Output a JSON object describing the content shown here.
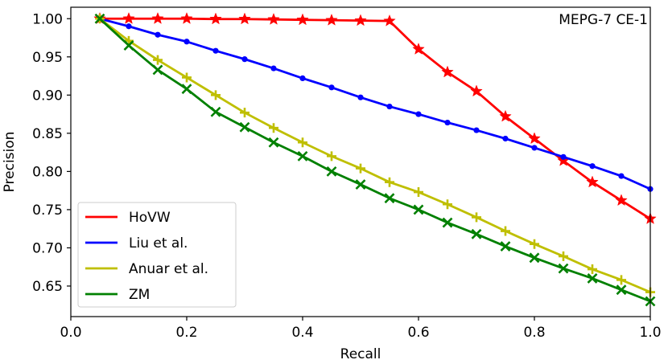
{
  "chart_data": {
    "type": "line",
    "title": "",
    "annotation": "MEPG-7 CE-1",
    "xlabel": "Recall",
    "ylabel": "Precision",
    "xlim": [
      0.0,
      1.0
    ],
    "ylim": [
      0.61,
      1.015
    ],
    "xticks": [
      0.0,
      0.2,
      0.4,
      0.6,
      0.8,
      1.0
    ],
    "xtick_labels": [
      "0.0",
      "0.2",
      "0.4",
      "0.6",
      "0.8",
      "1.0"
    ],
    "yticks": [
      0.65,
      0.7,
      0.75,
      0.8,
      0.85,
      0.9,
      0.95,
      1.0
    ],
    "ytick_labels": [
      "0.65",
      "0.70",
      "0.75",
      "0.80",
      "0.85",
      "0.90",
      "0.95",
      "1.00"
    ],
    "grid": false,
    "legend_position": "lower-left",
    "x": [
      0.05,
      0.1,
      0.15,
      0.2,
      0.25,
      0.3,
      0.35,
      0.4,
      0.45,
      0.5,
      0.55,
      0.6,
      0.65,
      0.7,
      0.75,
      0.8,
      0.85,
      0.9,
      0.95,
      1.0
    ],
    "series": [
      {
        "name": "HoVW",
        "color": "#ff0000",
        "marker": "star",
        "values": [
          1.0,
          1.0,
          1.0,
          1.0,
          0.9995,
          0.9995,
          0.999,
          0.9985,
          0.998,
          0.9975,
          0.997,
          0.96,
          0.93,
          0.905,
          0.872,
          0.843,
          0.814,
          0.786,
          0.762,
          0.738
        ]
      },
      {
        "name": "Liu et al.",
        "color": "#0000ff",
        "marker": "circle",
        "values": [
          1.0,
          0.99,
          0.979,
          0.97,
          0.958,
          0.947,
          0.935,
          0.922,
          0.91,
          0.897,
          0.885,
          0.875,
          0.864,
          0.854,
          0.843,
          0.831,
          0.819,
          0.807,
          0.794,
          0.777
        ]
      },
      {
        "name": "Anuar et al.",
        "color": "#bfbf00",
        "marker": "plus",
        "values": [
          1.0,
          0.971,
          0.946,
          0.923,
          0.9,
          0.877,
          0.857,
          0.838,
          0.82,
          0.804,
          0.786,
          0.773,
          0.757,
          0.74,
          0.722,
          0.705,
          0.689,
          0.672,
          0.658,
          0.642
        ]
      },
      {
        "name": "ZM",
        "color": "#008000",
        "marker": "x",
        "values": [
          1.0,
          0.965,
          0.933,
          0.908,
          0.878,
          0.858,
          0.838,
          0.82,
          0.8,
          0.783,
          0.765,
          0.75,
          0.733,
          0.718,
          0.702,
          0.687,
          0.673,
          0.66,
          0.645,
          0.63
        ]
      }
    ]
  }
}
